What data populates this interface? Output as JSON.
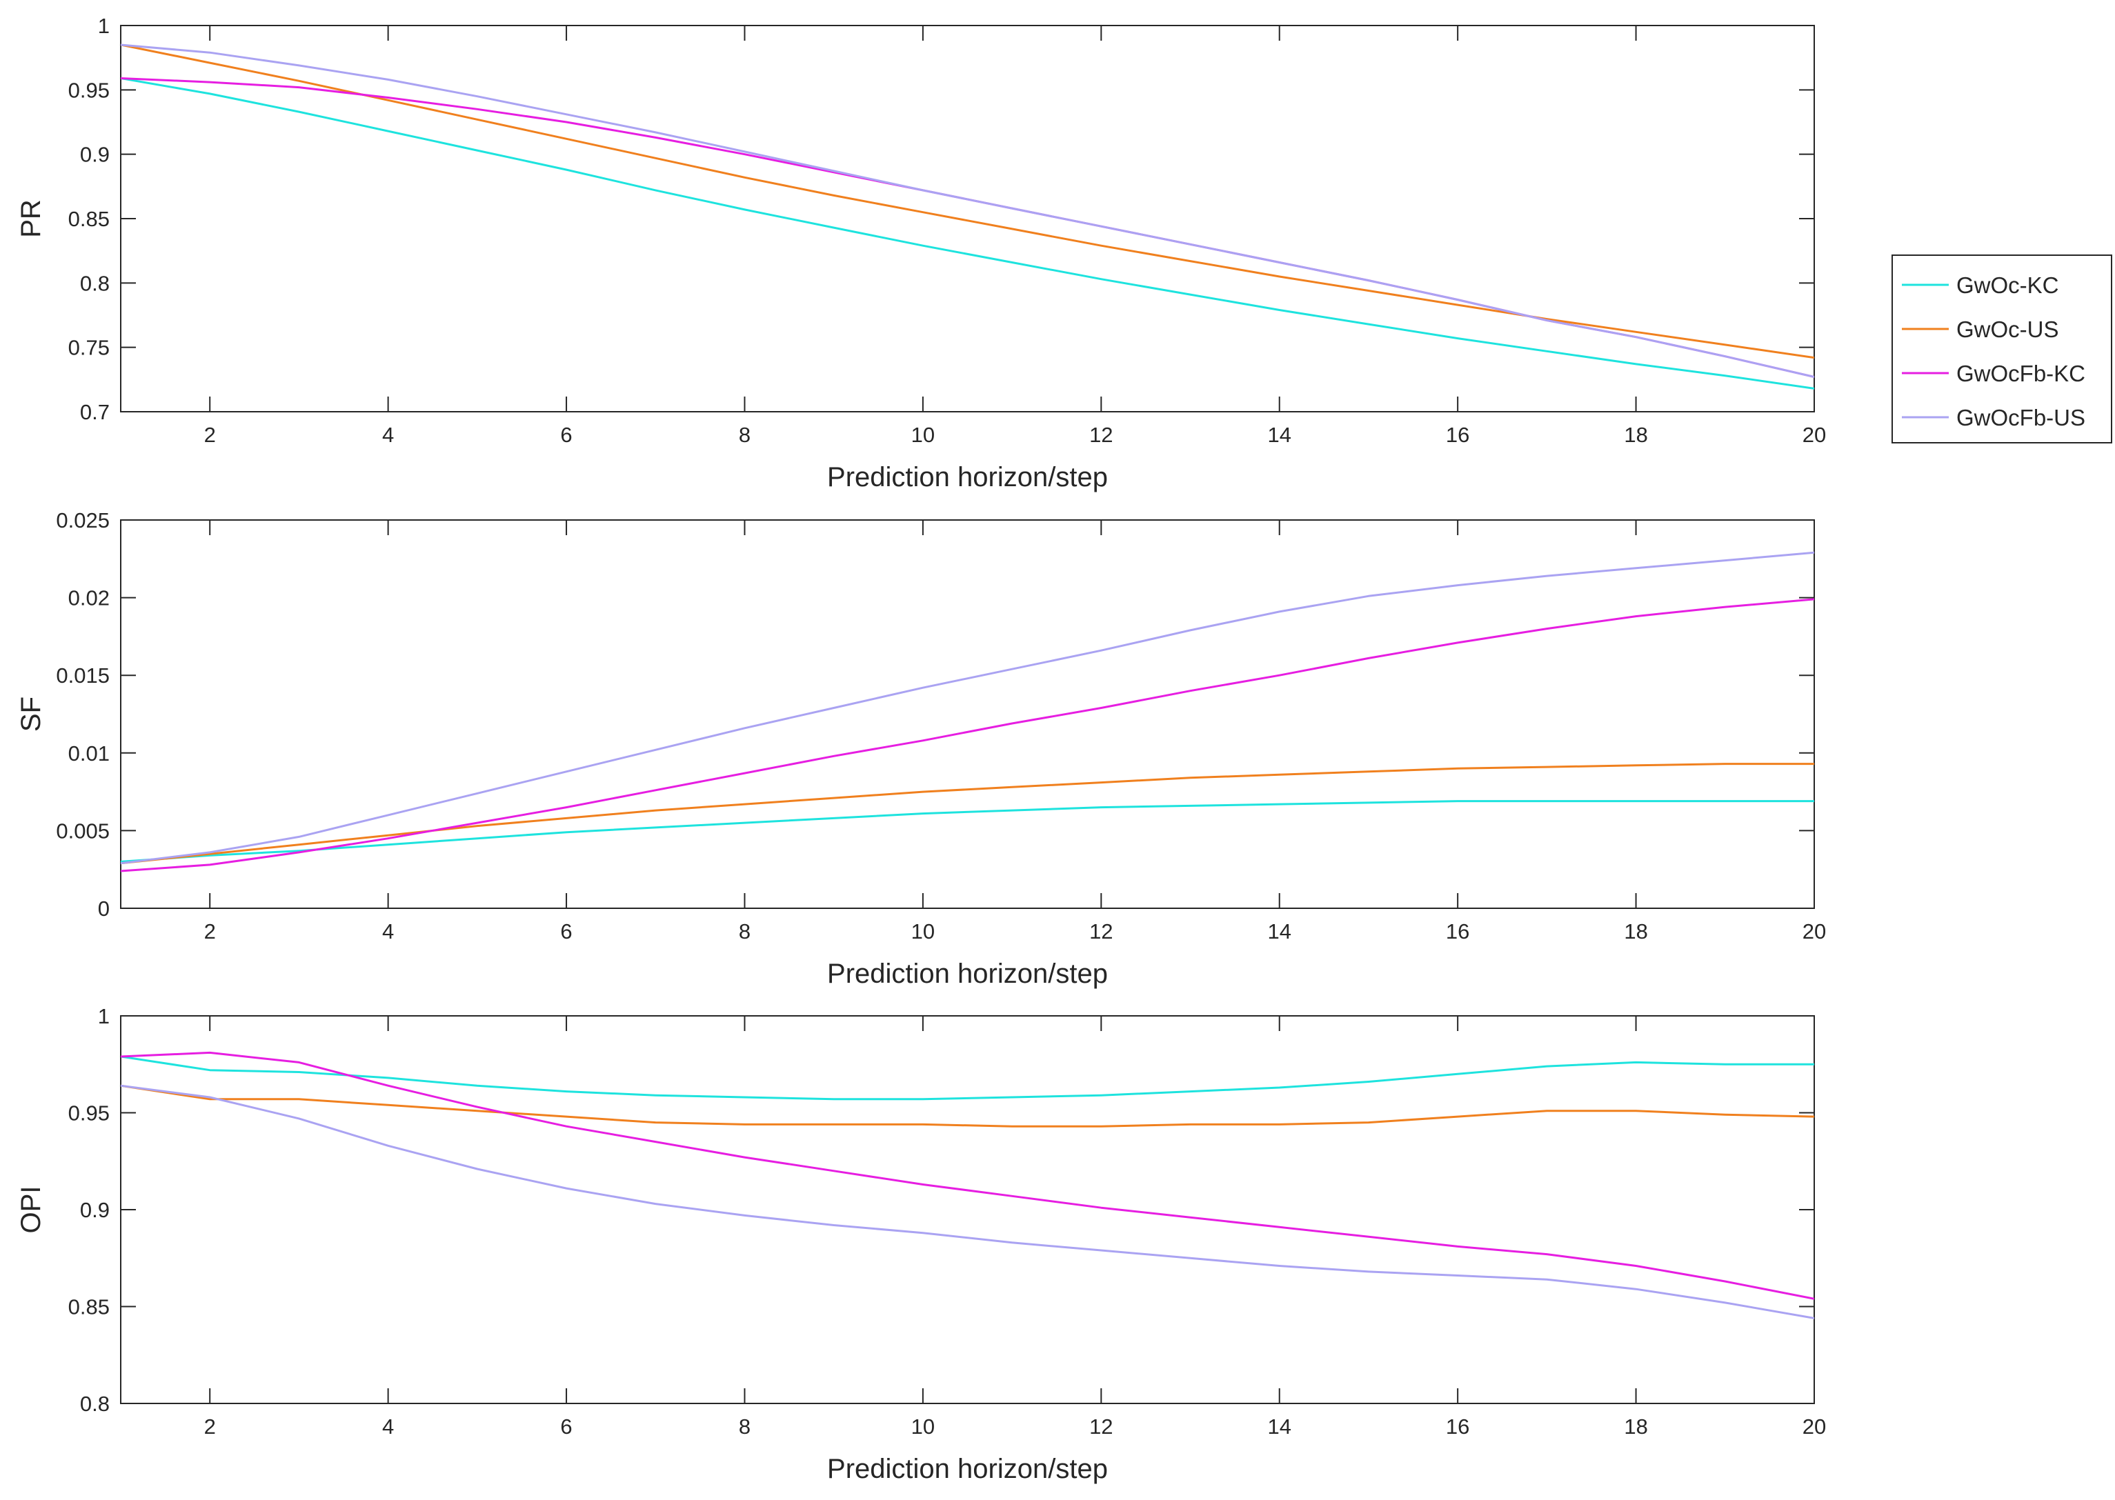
{
  "chart_data": [
    {
      "type": "line",
      "id": "pr",
      "title": "",
      "xlabel": "Prediction horizon/step",
      "ylabel": "PR",
      "xlim": [
        1,
        20
      ],
      "ylim": [
        0.7,
        1
      ],
      "xticks": [
        2,
        4,
        6,
        8,
        10,
        12,
        14,
        16,
        18,
        20
      ],
      "xtick_labels": [
        "2",
        "4",
        "6",
        "8",
        "10",
        "12",
        "14",
        "16",
        "18",
        "20"
      ],
      "yticks": [
        0.7,
        0.75,
        0.8,
        0.85,
        0.9,
        0.95,
        1
      ],
      "ytick_labels": [
        "0.7",
        "0.75",
        "0.8",
        "0.85",
        "0.9",
        "0.95",
        "1"
      ],
      "grid": false,
      "x": [
        1,
        2,
        3,
        4,
        5,
        6,
        7,
        8,
        9,
        10,
        11,
        12,
        13,
        14,
        15,
        16,
        17,
        18,
        19,
        20
      ],
      "series": [
        {
          "name": "GwOc-KC",
          "color": "#1ee3de",
          "values": [
            0.959,
            0.947,
            0.933,
            0.918,
            0.903,
            0.888,
            0.872,
            0.857,
            0.843,
            0.829,
            0.816,
            0.803,
            0.791,
            0.779,
            0.768,
            0.757,
            0.747,
            0.737,
            0.728,
            0.718
          ]
        },
        {
          "name": "GwOc-US",
          "color": "#f0801e",
          "values": [
            0.985,
            0.971,
            0.957,
            0.942,
            0.927,
            0.912,
            0.897,
            0.882,
            0.868,
            0.855,
            0.842,
            0.829,
            0.817,
            0.805,
            0.794,
            0.783,
            0.772,
            0.762,
            0.752,
            0.742
          ]
        },
        {
          "name": "GwOcFb-KC",
          "color": "#e61ee1",
          "values": [
            0.959,
            0.956,
            0.952,
            0.944,
            0.935,
            0.925,
            0.913,
            0.9,
            0.886,
            0.872,
            0.858,
            0.844,
            0.83,
            0.816,
            0.802,
            0.787,
            0.771,
            0.758,
            0.743,
            0.727
          ]
        },
        {
          "name": "GwOcFb-US",
          "color": "#aaa3f2",
          "values": [
            0.985,
            0.979,
            0.969,
            0.958,
            0.945,
            0.931,
            0.917,
            0.902,
            0.887,
            0.872,
            0.858,
            0.844,
            0.83,
            0.816,
            0.802,
            0.787,
            0.771,
            0.758,
            0.743,
            0.727
          ]
        }
      ]
    },
    {
      "type": "line",
      "id": "sf",
      "title": "",
      "xlabel": "Prediction horizon/step",
      "ylabel": "SF",
      "xlim": [
        1,
        20
      ],
      "ylim": [
        0,
        0.025
      ],
      "xticks": [
        2,
        4,
        6,
        8,
        10,
        12,
        14,
        16,
        18,
        20
      ],
      "xtick_labels": [
        "2",
        "4",
        "6",
        "8",
        "10",
        "12",
        "14",
        "16",
        "18",
        "20"
      ],
      "yticks": [
        0,
        0.005,
        0.01,
        0.015,
        0.02,
        0.025
      ],
      "ytick_labels": [
        "0",
        "0.005",
        "0.01",
        "0.015",
        "0.02",
        "0.025"
      ],
      "grid": false,
      "x": [
        1,
        2,
        3,
        4,
        5,
        6,
        7,
        8,
        9,
        10,
        11,
        12,
        13,
        14,
        15,
        16,
        17,
        18,
        19,
        20
      ],
      "series": [
        {
          "name": "GwOc-KC",
          "color": "#1ee3de",
          "values": [
            0.003,
            0.0034,
            0.0037,
            0.0041,
            0.0045,
            0.0049,
            0.0052,
            0.0055,
            0.0058,
            0.0061,
            0.0063,
            0.0065,
            0.0066,
            0.0067,
            0.0068,
            0.0069,
            0.0069,
            0.0069,
            0.0069,
            0.0069
          ]
        },
        {
          "name": "GwOc-US",
          "color": "#f0801e",
          "values": [
            0.0029,
            0.0035,
            0.0041,
            0.0047,
            0.0053,
            0.0058,
            0.0063,
            0.0067,
            0.0071,
            0.0075,
            0.0078,
            0.0081,
            0.0084,
            0.0086,
            0.0088,
            0.009,
            0.0091,
            0.0092,
            0.0093,
            0.0093
          ]
        },
        {
          "name": "GwOcFb-KC",
          "color": "#e61ee1",
          "values": [
            0.0024,
            0.0028,
            0.0036,
            0.0045,
            0.0055,
            0.0065,
            0.0076,
            0.0087,
            0.0098,
            0.0108,
            0.0119,
            0.0129,
            0.014,
            0.015,
            0.0161,
            0.0171,
            0.018,
            0.0188,
            0.0194,
            0.0199
          ]
        },
        {
          "name": "GwOcFb-US",
          "color": "#aaa3f2",
          "values": [
            0.0029,
            0.0036,
            0.0046,
            0.006,
            0.0074,
            0.0088,
            0.0102,
            0.0116,
            0.0129,
            0.0142,
            0.0154,
            0.0166,
            0.0179,
            0.0191,
            0.0201,
            0.0208,
            0.0214,
            0.0219,
            0.0224,
            0.0229
          ]
        }
      ]
    },
    {
      "type": "line",
      "id": "opi",
      "title": "",
      "xlabel": "Prediction horizon/step",
      "ylabel": "OPI",
      "xlim": [
        1,
        20
      ],
      "ylim": [
        0.8,
        1
      ],
      "xticks": [
        2,
        4,
        6,
        8,
        10,
        12,
        14,
        16,
        18,
        20
      ],
      "xtick_labels": [
        "2",
        "4",
        "6",
        "8",
        "10",
        "12",
        "14",
        "16",
        "18",
        "20"
      ],
      "yticks": [
        0.8,
        0.85,
        0.9,
        0.95,
        1
      ],
      "ytick_labels": [
        "0.8",
        "0.85",
        "0.9",
        "0.95",
        "1"
      ],
      "grid": false,
      "x": [
        1,
        2,
        3,
        4,
        5,
        6,
        7,
        8,
        9,
        10,
        11,
        12,
        13,
        14,
        15,
        16,
        17,
        18,
        19,
        20
      ],
      "series": [
        {
          "name": "GwOc-KC",
          "color": "#1ee3de",
          "values": [
            0.979,
            0.972,
            0.971,
            0.968,
            0.964,
            0.961,
            0.959,
            0.958,
            0.957,
            0.957,
            0.958,
            0.959,
            0.961,
            0.963,
            0.966,
            0.97,
            0.974,
            0.976,
            0.975,
            0.975
          ]
        },
        {
          "name": "GwOc-US",
          "color": "#f0801e",
          "values": [
            0.964,
            0.957,
            0.957,
            0.954,
            0.951,
            0.948,
            0.945,
            0.944,
            0.944,
            0.944,
            0.943,
            0.943,
            0.944,
            0.944,
            0.945,
            0.948,
            0.951,
            0.951,
            0.949,
            0.948
          ]
        },
        {
          "name": "GwOcFb-KC",
          "color": "#e61ee1",
          "values": [
            0.979,
            0.981,
            0.976,
            0.964,
            0.953,
            0.943,
            0.935,
            0.927,
            0.92,
            0.913,
            0.907,
            0.901,
            0.896,
            0.891,
            0.886,
            0.881,
            0.877,
            0.871,
            0.863,
            0.854
          ]
        },
        {
          "name": "GwOcFb-US",
          "color": "#aaa3f2",
          "values": [
            0.964,
            0.958,
            0.947,
            0.933,
            0.921,
            0.911,
            0.903,
            0.897,
            0.892,
            0.888,
            0.883,
            0.879,
            0.875,
            0.871,
            0.868,
            0.866,
            0.864,
            0.859,
            0.852,
            0.844
          ]
        }
      ]
    }
  ],
  "legend": {
    "entries": [
      "GwOc-KC",
      "GwOc-US",
      "GwOcFb-KC",
      "GwOcFb-US"
    ],
    "colors": [
      "#1ee3de",
      "#f0801e",
      "#e61ee1",
      "#aaa3f2"
    ],
    "placement": "right of top plot"
  }
}
